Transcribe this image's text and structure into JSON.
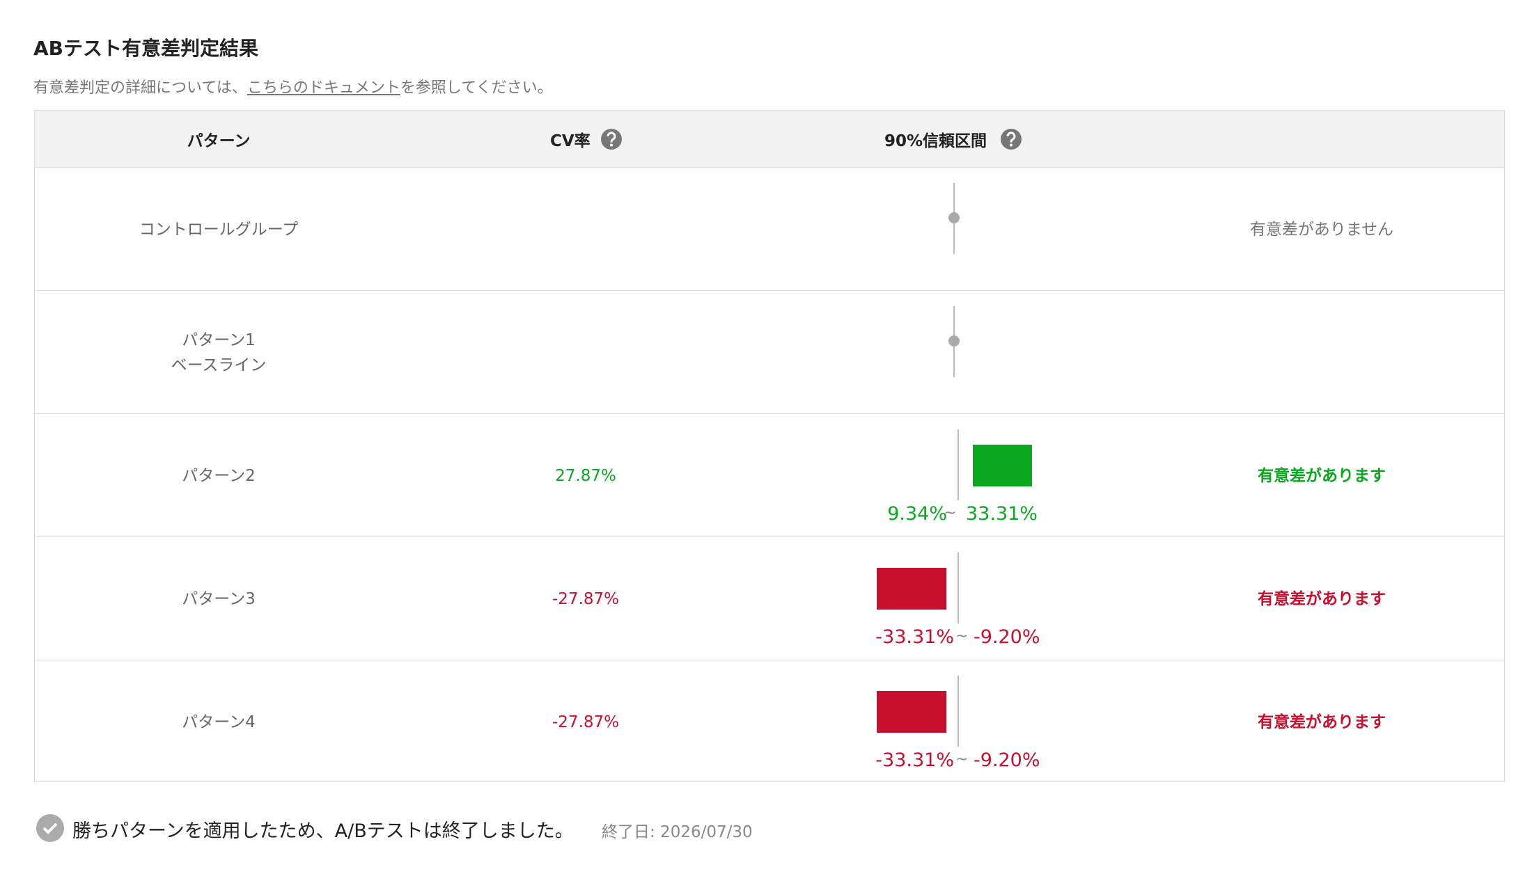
{
  "header": {
    "title": "ABテスト有意差判定結果",
    "description": {
      "before": "有意差判定の詳細については、",
      "link": "こちらのドキュメント",
      "after": "を参照してください。"
    }
  },
  "table": {
    "columns": [
      "パターン",
      "CV率",
      "90%信頼区間"
    ],
    "ci_separator": "~",
    "rows": [
      {
        "name": "コントロールグループ",
        "result": "有意差がありません",
        "status": "neutral"
      },
      {
        "name": "パターン1",
        "sub": "ベースライン"
      },
      {
        "name": "パターン2",
        "cv": "27.87%",
        "ci_low": "9.34%",
        "ci_high": "33.31%",
        "result": "有意差があります",
        "status": "positive"
      },
      {
        "name": "パターン3",
        "cv": "-27.87%",
        "ci_low": "-33.31%",
        "ci_high": "-9.20%",
        "result": "有意差があります",
        "status": "negative"
      },
      {
        "name": "パターン4",
        "cv": "-27.87%",
        "ci_low": "-33.31%",
        "ci_high": "-9.20%",
        "result": "有意差があります",
        "status": "negative"
      }
    ]
  },
  "footer": {
    "message": "勝ちパターンを適用したため、A/Bテストは終了しました。",
    "end_date": "終了日: 2026/07/30"
  }
}
